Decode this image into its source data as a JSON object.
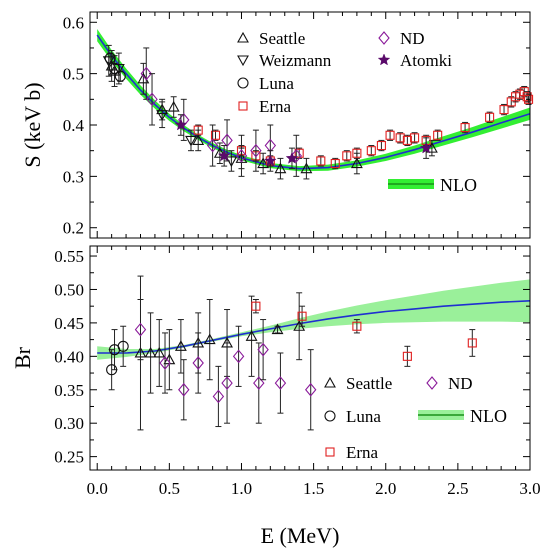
{
  "figure": {
    "xlabel": "E (MeV)",
    "xticks": [
      "0.0",
      "0.5",
      "1.0",
      "1.5",
      "2.0",
      "2.5",
      "3.0"
    ]
  },
  "chart_data": [
    {
      "type": "scatter",
      "ylabel": "S (keV b)",
      "xlim": [
        -0.05,
        3.0
      ],
      "ylim": [
        0.18,
        0.62
      ],
      "yticks": [
        "0.2",
        "0.3",
        "0.4",
        "0.5",
        "0.6"
      ],
      "legend": [
        {
          "label": "Seattle",
          "marker": "triangle-up"
        },
        {
          "label": "Weizmann",
          "marker": "triangle-down"
        },
        {
          "label": "Luna",
          "marker": "circle"
        },
        {
          "label": "Erna",
          "marker": "square"
        },
        {
          "label": "ND",
          "marker": "diamond"
        },
        {
          "label": "Atomki",
          "marker": "star"
        }
      ],
      "band_legend": "NLO",
      "colors": {
        "nlo_line": "#1f2fd0",
        "band": "#33ee33",
        "black": "#111111",
        "red": "#e02020",
        "purple": "#8a1a9a",
        "dark_purple": "#5a0a6a"
      },
      "nlo_curve": {
        "x": [
          0.0,
          0.1,
          0.2,
          0.3,
          0.4,
          0.5,
          0.6,
          0.7,
          0.8,
          0.9,
          1.0,
          1.2,
          1.4,
          1.6,
          1.8,
          2.0,
          2.2,
          2.4,
          2.6,
          2.8,
          3.0
        ],
        "y": [
          0.575,
          0.535,
          0.5,
          0.468,
          0.44,
          0.415,
          0.394,
          0.376,
          0.36,
          0.347,
          0.336,
          0.321,
          0.315,
          0.317,
          0.325,
          0.337,
          0.352,
          0.369,
          0.386,
          0.404,
          0.422
        ],
        "band_halfwidth": [
          0.012,
          0.011,
          0.01,
          0.009,
          0.008,
          0.007,
          0.006,
          0.005,
          0.005,
          0.005,
          0.005,
          0.005,
          0.005,
          0.006,
          0.006,
          0.007,
          0.008,
          0.009,
          0.01,
          0.011,
          0.012
        ]
      },
      "series": [
        {
          "name": "Seattle",
          "marker": "triangle-up",
          "color": "black",
          "points": [
            {
              "x": 0.1,
              "y": 0.515,
              "err": 0.03
            },
            {
              "x": 0.12,
              "y": 0.505,
              "err": 0.03
            },
            {
              "x": 0.32,
              "y": 0.49,
              "err": 0.03
            },
            {
              "x": 0.45,
              "y": 0.43,
              "err": 0.02
            },
            {
              "x": 0.53,
              "y": 0.435,
              "err": 0.02
            },
            {
              "x": 0.7,
              "y": 0.37,
              "err": 0.02
            },
            {
              "x": 0.85,
              "y": 0.345,
              "err": 0.02
            },
            {
              "x": 1.0,
              "y": 0.335,
              "err": 0.02
            },
            {
              "x": 1.15,
              "y": 0.325,
              "err": 0.02
            },
            {
              "x": 1.27,
              "y": 0.315,
              "err": 0.02
            },
            {
              "x": 1.45,
              "y": 0.315,
              "err": 0.02
            },
            {
              "x": 1.8,
              "y": 0.325,
              "err": 0.02
            },
            {
              "x": 2.32,
              "y": 0.355,
              "err": 0.015
            }
          ]
        },
        {
          "name": "Weizmann",
          "marker": "triangle-down",
          "color": "black",
          "points": [
            {
              "x": 0.08,
              "y": 0.525,
              "err": 0.03
            },
            {
              "x": 0.15,
              "y": 0.51,
              "err": 0.03
            },
            {
              "x": 0.45,
              "y": 0.42,
              "err": 0.025
            },
            {
              "x": 0.65,
              "y": 0.37,
              "err": 0.02
            },
            {
              "x": 0.93,
              "y": 0.33,
              "err": 0.02
            }
          ]
        },
        {
          "name": "Luna",
          "marker": "circle",
          "color": "black",
          "points": [
            {
              "x": 0.09,
              "y": 0.53,
              "err": 0.01
            },
            {
              "x": 0.12,
              "y": 0.51,
              "err": 0.01
            },
            {
              "x": 0.16,
              "y": 0.495,
              "err": 0.01
            }
          ]
        },
        {
          "name": "Erna",
          "marker": "square",
          "color": "red",
          "points": [
            {
              "x": 0.7,
              "y": 0.39,
              "err": 0.01
            },
            {
              "x": 0.82,
              "y": 0.38,
              "err": 0.01
            },
            {
              "x": 1.0,
              "y": 0.35,
              "err": 0.01
            },
            {
              "x": 1.1,
              "y": 0.34,
              "err": 0.01
            },
            {
              "x": 1.2,
              "y": 0.33,
              "err": 0.01
            },
            {
              "x": 1.4,
              "y": 0.345,
              "err": 0.01
            },
            {
              "x": 1.55,
              "y": 0.33,
              "err": 0.01
            },
            {
              "x": 1.65,
              "y": 0.325,
              "err": 0.01
            },
            {
              "x": 1.73,
              "y": 0.34,
              "err": 0.01
            },
            {
              "x": 1.8,
              "y": 0.345,
              "err": 0.01
            },
            {
              "x": 1.9,
              "y": 0.35,
              "err": 0.01
            },
            {
              "x": 1.97,
              "y": 0.36,
              "err": 0.01
            },
            {
              "x": 2.03,
              "y": 0.38,
              "err": 0.01
            },
            {
              "x": 2.1,
              "y": 0.375,
              "err": 0.01
            },
            {
              "x": 2.15,
              "y": 0.37,
              "err": 0.01
            },
            {
              "x": 2.2,
              "y": 0.375,
              "err": 0.01
            },
            {
              "x": 2.28,
              "y": 0.37,
              "err": 0.01
            },
            {
              "x": 2.36,
              "y": 0.38,
              "err": 0.01
            },
            {
              "x": 2.55,
              "y": 0.395,
              "err": 0.01
            },
            {
              "x": 2.72,
              "y": 0.415,
              "err": 0.01
            },
            {
              "x": 2.82,
              "y": 0.43,
              "err": 0.01
            },
            {
              "x": 2.87,
              "y": 0.445,
              "err": 0.01
            },
            {
              "x": 2.9,
              "y": 0.455,
              "err": 0.01
            },
            {
              "x": 2.93,
              "y": 0.46,
              "err": 0.01
            },
            {
              "x": 2.96,
              "y": 0.465,
              "err": 0.01
            },
            {
              "x": 2.98,
              "y": 0.455,
              "err": 0.01
            },
            {
              "x": 2.99,
              "y": 0.45,
              "err": 0.01
            }
          ]
        },
        {
          "name": "ND",
          "marker": "diamond",
          "color": "purple",
          "points": [
            {
              "x": 0.34,
              "y": 0.5,
              "err": 0.05
            },
            {
              "x": 0.38,
              "y": 0.45,
              "err": 0.05
            },
            {
              "x": 0.6,
              "y": 0.41,
              "err": 0.04
            },
            {
              "x": 0.8,
              "y": 0.36,
              "err": 0.04
            },
            {
              "x": 0.9,
              "y": 0.37,
              "err": 0.04
            },
            {
              "x": 1.0,
              "y": 0.34,
              "err": 0.04
            },
            {
              "x": 1.1,
              "y": 0.35,
              "err": 0.04
            },
            {
              "x": 1.2,
              "y": 0.36,
              "err": 0.04
            },
            {
              "x": 1.38,
              "y": 0.34,
              "err": 0.04
            }
          ]
        },
        {
          "name": "Atomki",
          "marker": "star",
          "color": "dark_purple",
          "points": [
            {
              "x": 0.58,
              "y": 0.4,
              "err": 0.02
            },
            {
              "x": 0.88,
              "y": 0.34,
              "err": 0.02
            },
            {
              "x": 1.2,
              "y": 0.33,
              "err": 0.02
            },
            {
              "x": 1.35,
              "y": 0.335,
              "err": 0.02
            },
            {
              "x": 2.28,
              "y": 0.355,
              "err": 0.02
            }
          ]
        }
      ]
    },
    {
      "type": "scatter",
      "ylabel": "Br",
      "xlim": [
        -0.05,
        3.0
      ],
      "ylim": [
        0.23,
        0.565
      ],
      "yticks": [
        "0.25",
        "0.30",
        "0.35",
        "0.40",
        "0.45",
        "0.50",
        "0.55"
      ],
      "legend": [
        {
          "label": "Seattle",
          "marker": "triangle-up"
        },
        {
          "label": "ND",
          "marker": "diamond"
        },
        {
          "label": "Luna",
          "marker": "circle"
        },
        {
          "label": "Erna",
          "marker": "square"
        }
      ],
      "band_legend": "NLO",
      "nlo_curve": {
        "x": [
          0.0,
          0.2,
          0.4,
          0.6,
          0.8,
          1.0,
          1.2,
          1.4,
          1.6,
          1.8,
          2.0,
          2.2,
          2.4,
          2.6,
          2.8,
          3.0
        ],
        "y": [
          0.405,
          0.405,
          0.408,
          0.415,
          0.424,
          0.433,
          0.441,
          0.449,
          0.456,
          0.462,
          0.467,
          0.471,
          0.475,
          0.478,
          0.481,
          0.483
        ],
        "band_halfwidth": [
          0.01,
          0.006,
          0.003,
          0.002,
          0.002,
          0.003,
          0.005,
          0.008,
          0.011,
          0.014,
          0.017,
          0.02,
          0.023,
          0.026,
          0.029,
          0.032
        ]
      },
      "series": [
        {
          "name": "Seattle",
          "marker": "triangle-up",
          "color": "black",
          "points": [
            {
              "x": 0.3,
              "y": 0.405,
              "err": 0.115
            },
            {
              "x": 0.37,
              "y": 0.405,
              "err": 0.06
            },
            {
              "x": 0.43,
              "y": 0.405,
              "err": 0.05
            },
            {
              "x": 0.5,
              "y": 0.395,
              "err": 0.045
            },
            {
              "x": 0.58,
              "y": 0.415,
              "err": 0.04
            },
            {
              "x": 0.7,
              "y": 0.42,
              "err": 0.045
            },
            {
              "x": 0.78,
              "y": 0.425,
              "err": 0.06
            },
            {
              "x": 0.9,
              "y": 0.42,
              "err": 0.05
            },
            {
              "x": 1.07,
              "y": 0.43,
              "err": 0.06
            },
            {
              "x": 1.25,
              "y": 0.44,
              "err": 0.005
            },
            {
              "x": 1.4,
              "y": 0.445,
              "err": 0.05
            }
          ]
        },
        {
          "name": "Luna",
          "marker": "circle",
          "color": "black",
          "points": [
            {
              "x": 0.1,
              "y": 0.38,
              "err": 0.03
            },
            {
              "x": 0.12,
              "y": 0.41,
              "err": 0.03
            },
            {
              "x": 0.18,
              "y": 0.415,
              "err": 0.03
            }
          ]
        },
        {
          "name": "Erna",
          "marker": "square",
          "color": "red",
          "points": [
            {
              "x": 1.1,
              "y": 0.475,
              "err": 0.01
            },
            {
              "x": 1.42,
              "y": 0.46,
              "err": 0.015
            },
            {
              "x": 1.8,
              "y": 0.445,
              "err": 0.01
            },
            {
              "x": 2.15,
              "y": 0.4,
              "err": 0.015
            },
            {
              "x": 2.6,
              "y": 0.42,
              "err": 0.02
            }
          ]
        },
        {
          "name": "ND",
          "marker": "diamond",
          "color": "purple",
          "points": [
            {
              "x": 0.3,
              "y": 0.44,
              "err": 0.045
            },
            {
              "x": 0.47,
              "y": 0.39,
              "err": 0.045
            },
            {
              "x": 0.6,
              "y": 0.35,
              "err": 0.045
            },
            {
              "x": 0.7,
              "y": 0.39,
              "err": 0.045
            },
            {
              "x": 0.84,
              "y": 0.34,
              "err": 0.045
            },
            {
              "x": 0.9,
              "y": 0.36,
              "err": 0.06
            },
            {
              "x": 0.98,
              "y": 0.4,
              "err": 0.045
            },
            {
              "x": 1.12,
              "y": 0.36,
              "err": 0.06
            },
            {
              "x": 1.15,
              "y": 0.41,
              "err": 0.045
            },
            {
              "x": 1.27,
              "y": 0.36,
              "err": 0.045
            },
            {
              "x": 1.48,
              "y": 0.35,
              "err": 0.06
            }
          ]
        }
      ]
    }
  ]
}
